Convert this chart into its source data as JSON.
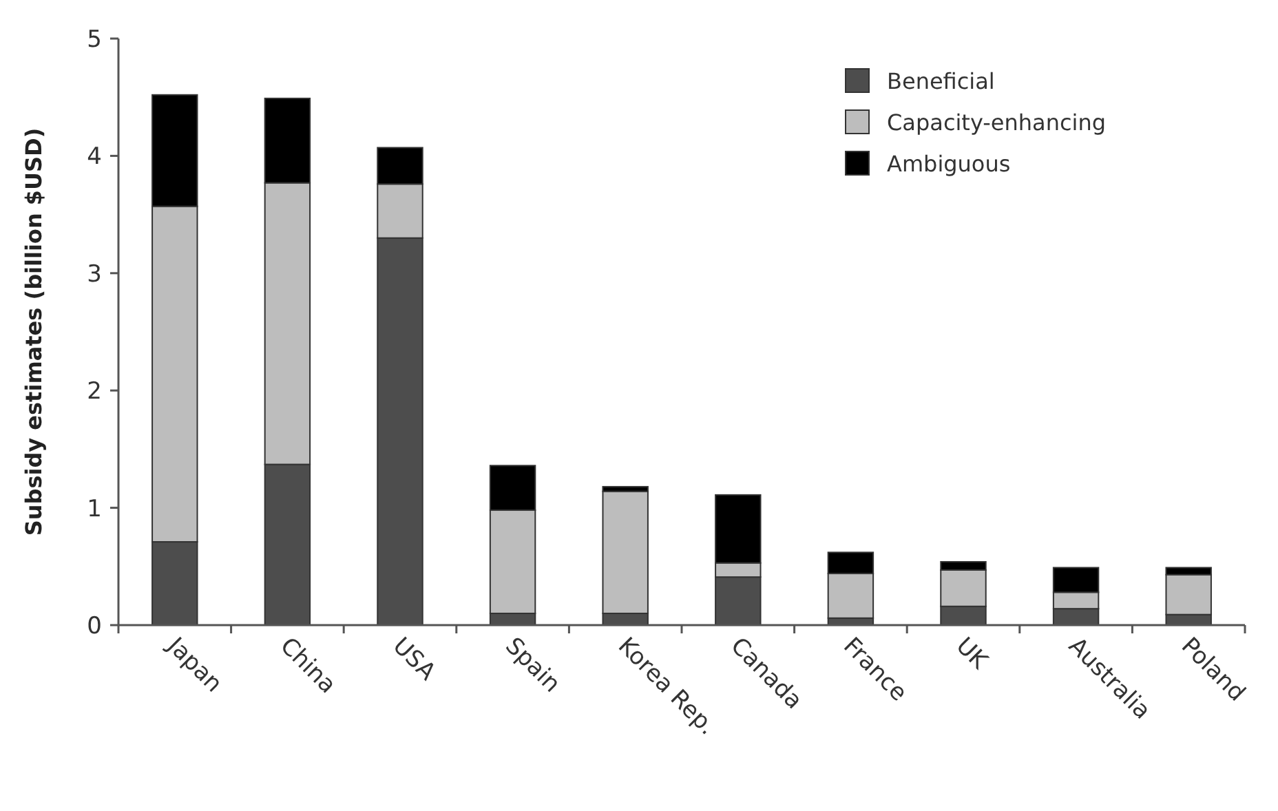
{
  "chart_data": {
    "type": "bar",
    "stacked": true,
    "ylabel": "Subsidy estimates (billion $USD)",
    "categories": [
      "Japan",
      "China",
      "USA",
      "Spain",
      "Korea Rep.",
      "Canada",
      "France",
      "UK",
      "Australia",
      "Poland"
    ],
    "series": [
      {
        "name": "Beneficial",
        "color": "#4d4d4d",
        "values": [
          0.71,
          1.37,
          3.3,
          0.1,
          0.1,
          0.41,
          0.06,
          0.16,
          0.14,
          0.09
        ]
      },
      {
        "name": "Capacity-enhancing",
        "color": "#bdbdbd",
        "values": [
          2.86,
          2.4,
          0.46,
          0.88,
          1.04,
          0.12,
          0.38,
          0.31,
          0.14,
          0.34
        ]
      },
      {
        "name": "Ambiguous",
        "color": "#000000",
        "values": [
          0.95,
          0.72,
          0.31,
          0.38,
          0.04,
          0.58,
          0.18,
          0.07,
          0.21,
          0.06
        ]
      }
    ],
    "ylim": [
      0,
      5
    ],
    "yticks": [
      0,
      1,
      2,
      3,
      4,
      5
    ],
    "grid": false,
    "legend": "top right"
  }
}
